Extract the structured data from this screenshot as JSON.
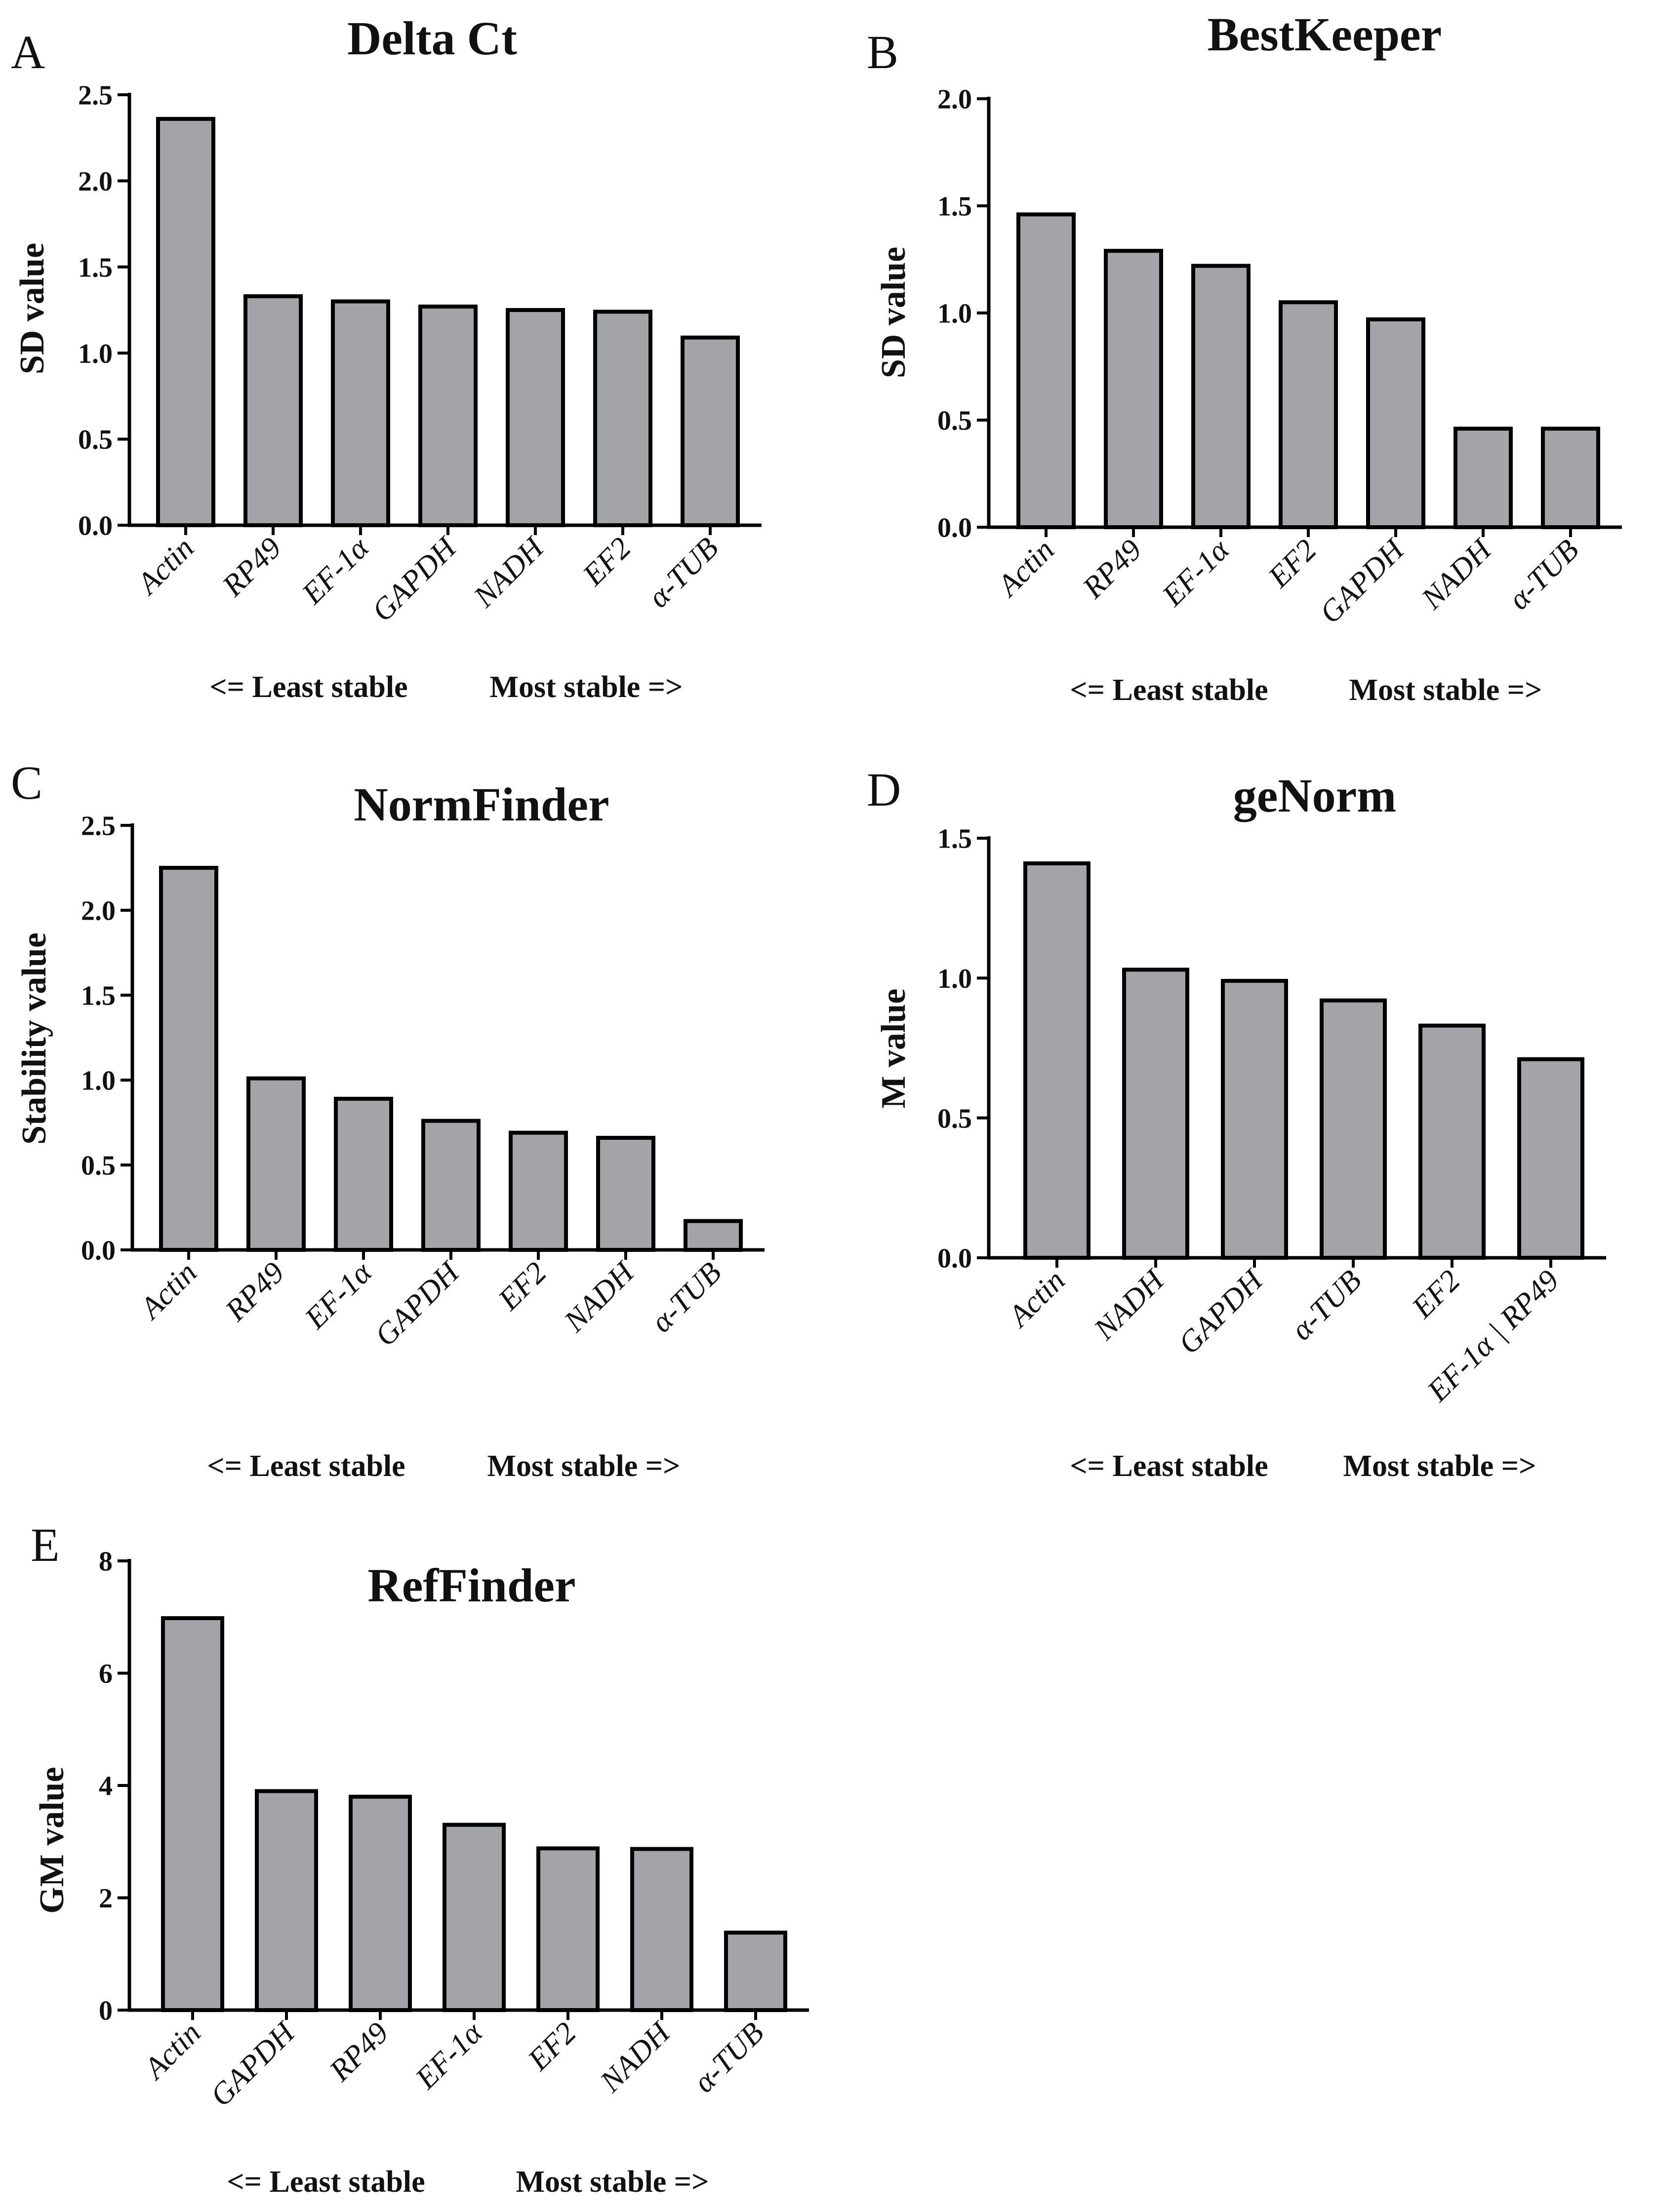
{
  "figure": {
    "bar_color": "#a3a4a8",
    "outline_color": "#000000"
  },
  "chart_data": [
    {
      "letter": "A",
      "type": "bar",
      "title": "Delta Ct",
      "ylabel": "SD value",
      "xlabel": "",
      "ylim": [
        0,
        2.5
      ],
      "yticks": [
        0,
        0.5,
        1.0,
        1.5,
        2.0,
        2.5
      ],
      "ytick_labels": [
        "0.0",
        "0.5",
        "1.0",
        "1.5",
        "2.0",
        "2.5"
      ],
      "categories": [
        "Actin",
        "RP49",
        "EF-1α",
        "GAPDH",
        "NADH",
        "EF2",
        "α-TUB"
      ],
      "values": [
        2.36,
        1.33,
        1.3,
        1.27,
        1.25,
        1.24,
        1.09
      ],
      "footer_left": "<= Least stable",
      "footer_right": "Most stable =>"
    },
    {
      "letter": "B",
      "type": "bar",
      "title": "BestKeeper",
      "ylabel": "SD value",
      "xlabel": "",
      "ylim": [
        0,
        2.0
      ],
      "yticks": [
        0,
        0.5,
        1.0,
        1.5,
        2.0
      ],
      "ytick_labels": [
        "0.0",
        "0.5",
        "1.0",
        "1.5",
        "2.0"
      ],
      "categories": [
        "Actin",
        "RP49",
        "EF-1α",
        "EF2",
        "GAPDH",
        "NADH",
        "α-TUB"
      ],
      "values": [
        1.46,
        1.29,
        1.22,
        1.05,
        0.97,
        0.46,
        0.46
      ],
      "footer_left": "<= Least stable",
      "footer_right": "Most stable =>"
    },
    {
      "letter": "C",
      "type": "bar",
      "title": "NormFinder",
      "ylabel": "Stability value",
      "xlabel": "",
      "ylim": [
        0,
        2.5
      ],
      "yticks": [
        0,
        0.5,
        1.0,
        1.5,
        2.0,
        2.5
      ],
      "ytick_labels": [
        "0.0",
        "0.5",
        "1.0",
        "1.5",
        "2.0",
        "2.5"
      ],
      "categories": [
        "Actin",
        "RP49",
        "EF-1α",
        "GAPDH",
        "EF2",
        "NADH",
        "α-TUB"
      ],
      "values": [
        2.25,
        1.01,
        0.89,
        0.76,
        0.69,
        0.66,
        0.17
      ],
      "footer_left": "<= Least stable",
      "footer_right": "Most stable =>"
    },
    {
      "letter": "D",
      "type": "bar",
      "title": "geNorm",
      "ylabel": "M value",
      "xlabel": "",
      "ylim": [
        0,
        1.5
      ],
      "yticks": [
        0,
        0.5,
        1.0,
        1.5
      ],
      "ytick_labels": [
        "0.0",
        "0.5",
        "1.0",
        "1.5"
      ],
      "categories": [
        "Actin",
        "NADH",
        "GAPDH",
        "α-TUB",
        "EF2",
        "EF-1α | RP49"
      ],
      "values": [
        1.41,
        1.03,
        0.99,
        0.92,
        0.83,
        0.71
      ],
      "footer_left": "<= Least stable",
      "footer_right": "Most stable =>"
    },
    {
      "letter": "E",
      "type": "bar",
      "title": "RefFinder",
      "ylabel": "GM value",
      "xlabel": "",
      "ylim": [
        0,
        8
      ],
      "yticks": [
        0,
        2,
        4,
        6,
        8
      ],
      "ytick_labels": [
        "0",
        "2",
        "4",
        "6",
        "8"
      ],
      "categories": [
        "Actin",
        "GAPDH",
        "RP49",
        "EF-1α",
        "EF2",
        "NADH",
        "α-TUB"
      ],
      "values": [
        6.98,
        3.9,
        3.8,
        3.3,
        2.88,
        2.87,
        1.38
      ],
      "footer_left": "<= Least stable",
      "footer_right": "Most stable =>"
    }
  ]
}
